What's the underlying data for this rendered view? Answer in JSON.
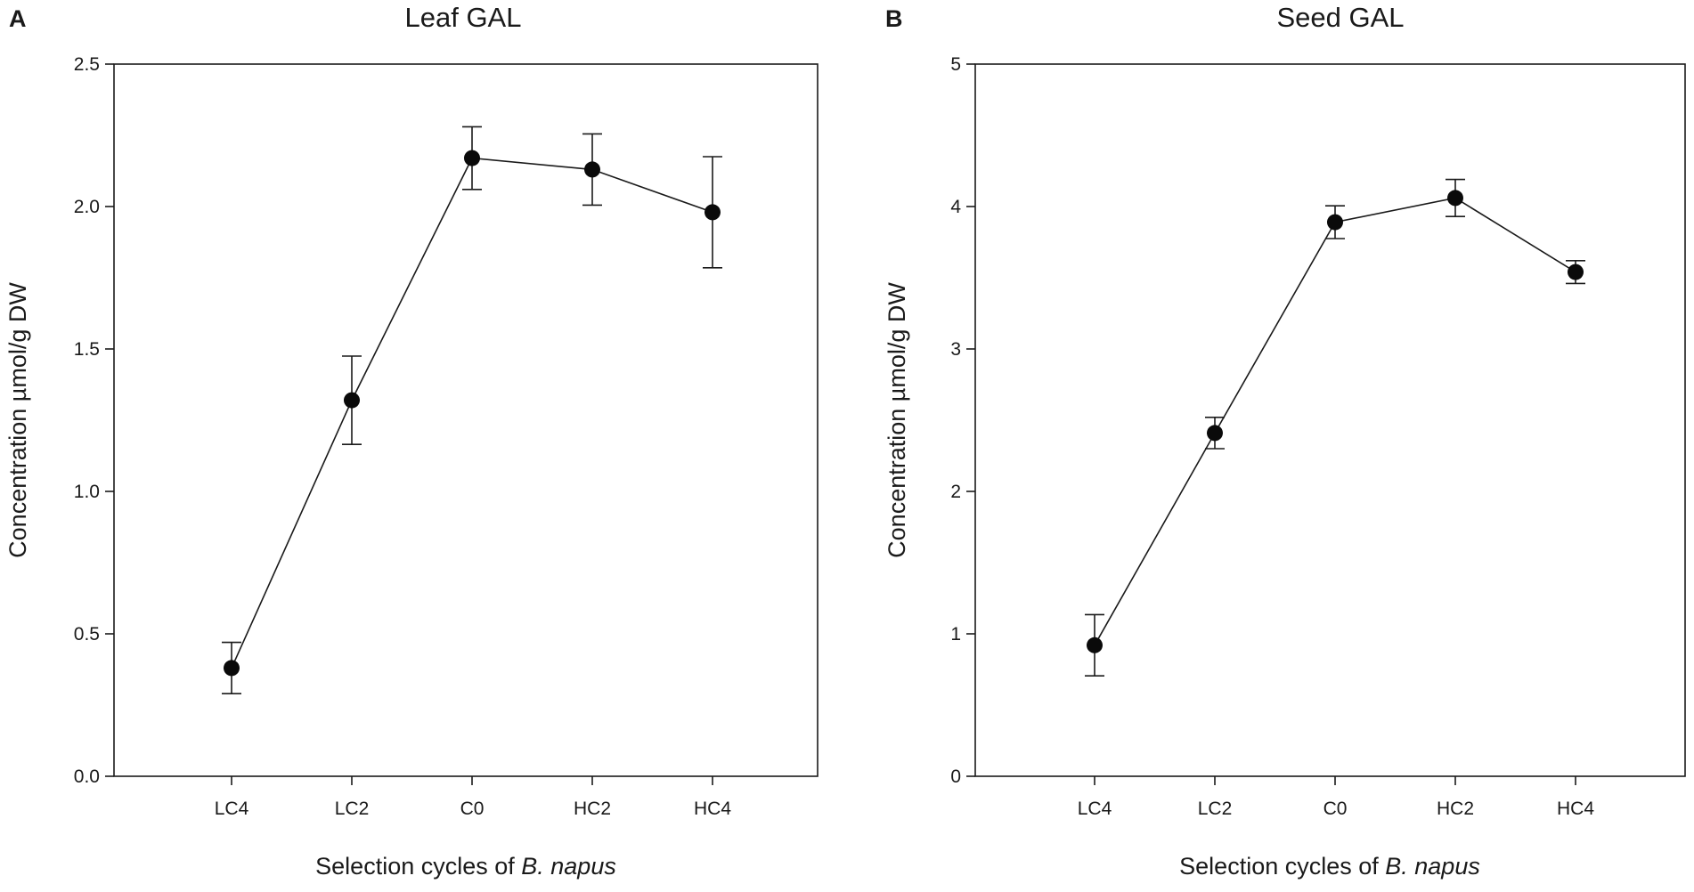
{
  "chart_data": [
    {
      "panel": "A",
      "type": "line",
      "title": "Leaf GAL",
      "xlabel_prefix": "Selection cycles of ",
      "xlabel_italic": "B. napus",
      "ylabel": "Concentration µmol/g DW",
      "categories": [
        "LC4",
        "LC2",
        "C0",
        "HC2",
        "HC4"
      ],
      "values": [
        0.38,
        1.32,
        2.17,
        2.13,
        1.98
      ],
      "errors": [
        0.09,
        0.155,
        0.11,
        0.125,
        0.195
      ],
      "ylim": [
        0,
        2.5
      ],
      "yticks": [
        0.0,
        0.5,
        1.0,
        1.5,
        2.0,
        2.5
      ],
      "ytick_labels": [
        "0.0",
        "0.5",
        "1.0",
        "1.5",
        "2.0",
        "2.5"
      ]
    },
    {
      "panel": "B",
      "type": "line",
      "title": "Seed GAL",
      "xlabel_prefix": "Selection cycles of ",
      "xlabel_italic": "B. napus",
      "ylabel": "Concentration µmol/g DW",
      "categories": [
        "LC4",
        "LC2",
        "C0",
        "HC2",
        "HC4"
      ],
      "values": [
        0.92,
        2.41,
        3.89,
        4.06,
        3.54
      ],
      "errors": [
        0.215,
        0.11,
        0.115,
        0.13,
        0.08
      ],
      "ylim": [
        0,
        5
      ],
      "yticks": [
        0,
        1,
        2,
        3,
        4,
        5
      ],
      "ytick_labels": [
        "0",
        "1",
        "2",
        "3",
        "4",
        "5"
      ]
    }
  ]
}
